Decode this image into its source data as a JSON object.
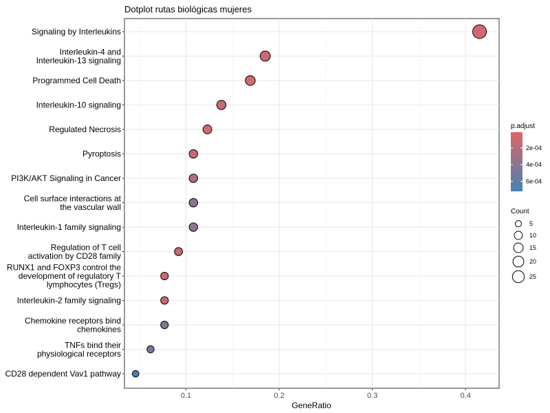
{
  "chart_data": {
    "type": "scatter",
    "title": "Dotplot rutas biológicas mujeres",
    "xlabel": "GeneRatio",
    "ylabel": "",
    "xlim": [
      0.034,
      0.436
    ],
    "x_ticks": [
      0.1,
      0.2,
      0.3,
      0.4
    ],
    "x_tick_labels": [
      "0.1",
      "0.2",
      "0.3",
      "0.4"
    ],
    "grid": true,
    "legend_position": "right",
    "categories": [
      "Signaling by Interleukins",
      "Interleukin-4 and Interleukin-13 signaling",
      "Programmed Cell Death",
      "Interleukin-10 signaling",
      "Regulated Necrosis",
      "Pyroptosis",
      "PI3K/AKT Signaling in Cancer",
      "Cell surface interactions at the vascular wall",
      "Interleukin-1 family signaling",
      "Regulation of T cell activation by CD28 family",
      "RUNX1 and FOXP3 control the development of regulatory T lymphocytes (Tregs)",
      "Interleukin-2 family signaling",
      "Chemokine receptors bind chemokines",
      "TNFs bind their physiological receptors",
      "CD28 dependent Vav1 pathway"
    ],
    "category_label_lines": [
      [
        "Signaling by Interleukins"
      ],
      [
        "Interleukin-4 and",
        "Interleukin-13 signaling"
      ],
      [
        "Programmed Cell Death"
      ],
      [
        "Interleukin-10 signaling"
      ],
      [
        "Regulated Necrosis"
      ],
      [
        "Pyroptosis"
      ],
      [
        "PI3K/AKT Signaling in Cancer"
      ],
      [
        "Cell surface interactions at",
        "the vascular wall"
      ],
      [
        "Interleukin-1 family signaling"
      ],
      [
        "Regulation of T cell",
        "activation by CD28 family"
      ],
      [
        "RUNX1 and FOXP3 control the",
        "development of regulatory T",
        "lymphocytes (Tregs)"
      ],
      [
        "Interleukin-2 family signaling"
      ],
      [
        "Chemokine receptors bind",
        "chemokines"
      ],
      [
        "TNFs bind their",
        "physiological receptors"
      ],
      [
        "CD28 dependent Vav1 pathway"
      ]
    ],
    "series": [
      {
        "x": [
          0.415,
          0.185,
          0.169,
          0.138,
          0.123,
          0.108,
          0.108,
          0.108,
          0.108,
          0.092,
          0.077,
          0.077,
          0.077,
          0.062,
          0.046
        ],
        "count": [
          27,
          12,
          11,
          9,
          8,
          7,
          7,
          7,
          7,
          6,
          5,
          5,
          5,
          4,
          3
        ],
        "p_adjust": [
          5e-05,
          0.0001,
          8e-05,
          0.00012,
          0.0001,
          0.00012,
          0.00025,
          0.0004,
          0.0004,
          0.00015,
          0.0001,
          0.00012,
          0.00045,
          0.0005,
          0.0007
        ]
      }
    ],
    "color_legend": {
      "title": "p.adjust",
      "range": [
        1e-05,
        0.00072
      ],
      "low_color": "#e06666",
      "high_color": "#4682b4",
      "breaks": [
        0.0002,
        0.0004,
        0.0006
      ],
      "labels": [
        "2e-04",
        "4e-04",
        "6e-04"
      ]
    },
    "size_legend": {
      "title": "Count",
      "breaks": [
        5,
        10,
        15,
        20,
        25
      ],
      "labels": [
        "5",
        "10",
        "15",
        "20",
        "25"
      ]
    }
  }
}
